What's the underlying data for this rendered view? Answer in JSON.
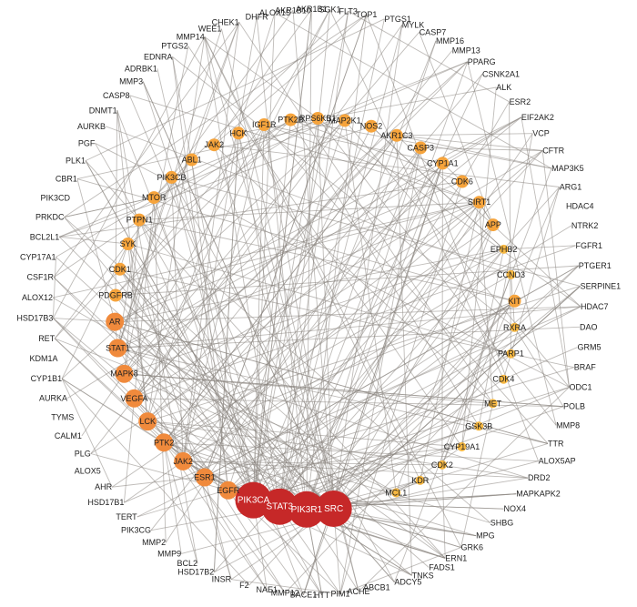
{
  "outer_nodes": [
    "SGK1",
    "FLT3",
    "TOP1",
    "PTGS1",
    "MYLK",
    "CASP7",
    "MMP16",
    "MMP13",
    "PPARG",
    "CSNK2A1",
    "ALK",
    "ESR2",
    "EIF2AK2",
    "VCP",
    "CFTR",
    "MAP3K5",
    "ARG1",
    "HDAC4",
    "NTRK2",
    "FGFR1",
    "PTGER1",
    "SERPINE1",
    "HDAC7",
    "DAO",
    "GRM5",
    "BRAF",
    "ODC1",
    "POLB",
    "MMP8",
    "TTR",
    "ALOX5AP",
    "DRD2",
    "MAPKAPK2",
    "NOX4",
    "SHBG",
    "MPG",
    "GRK6",
    "ERN1",
    "FADS1",
    "TNKS",
    "ADCY5",
    "ABCB1",
    "ACHE",
    "PIM1",
    "HTT",
    "BACE1",
    "MMP12",
    "NAE1",
    "F2",
    "INSR",
    "HSD17B2",
    "BCL2",
    "MMP9",
    "MMP2",
    "PIK3CG",
    "TERT",
    "HSD17B1",
    "AHR",
    "ALOX5",
    "PLG",
    "CALM1",
    "TYMS",
    "AURKA",
    "CYP1B1",
    "KDM1A",
    "RET",
    "HSD17B3",
    "ALOX12",
    "CSF1R",
    "CYP17A1",
    "BCL2L1",
    "PRKDC",
    "PIK3CD",
    "CBR1",
    "PLK1",
    "PGF",
    "AURKB",
    "DNMT1",
    "CASP8",
    "MMP3",
    "ADRBK1",
    "EDNRA",
    "PTGS2",
    "MMP14",
    "WEE1",
    "CHEK1",
    "DHFR",
    "ALOX15",
    "AKR1B10",
    "AKR1B1"
  ],
  "inner_nodes": [
    {
      "name": "SRC",
      "tier": 1
    },
    {
      "name": "PIK3R1",
      "tier": 1
    },
    {
      "name": "STAT3",
      "tier": 1
    },
    {
      "name": "PIK3CA",
      "tier": 1
    },
    {
      "name": "EGFR",
      "tier": 2
    },
    {
      "name": "ESR1",
      "tier": 2
    },
    {
      "name": "JAK2",
      "tier": 2
    },
    {
      "name": "PTK2",
      "tier": 2
    },
    {
      "name": "LCK",
      "tier": 2
    },
    {
      "name": "VEGFA",
      "tier": 2
    },
    {
      "name": "MAPK8",
      "tier": 2
    },
    {
      "name": "STAT1",
      "tier": 2
    },
    {
      "name": "AR",
      "tier": 2
    },
    {
      "name": "PDGFRB",
      "tier": 3
    },
    {
      "name": "CDK1",
      "tier": 3
    },
    {
      "name": "SYK",
      "tier": 3
    },
    {
      "name": "PTPN1",
      "tier": 3
    },
    {
      "name": "MTOR",
      "tier": 3
    },
    {
      "name": "PIK3CB",
      "tier": 3
    },
    {
      "name": "ABL1",
      "tier": 3
    },
    {
      "name": "JAK2",
      "tier": 3
    },
    {
      "name": "HCK",
      "tier": 3
    },
    {
      "name": "IGF1R",
      "tier": 3
    },
    {
      "name": "PTK2B",
      "tier": 3
    },
    {
      "name": "RPS6KB1",
      "tier": 3
    },
    {
      "name": "MAP2K1",
      "tier": 3
    },
    {
      "name": "NOS2",
      "tier": 3
    },
    {
      "name": "AKR1C3",
      "tier": 3
    },
    {
      "name": "CASP3",
      "tier": 3
    },
    {
      "name": "CYP1A1",
      "tier": 3
    },
    {
      "name": "CDK6",
      "tier": 3
    },
    {
      "name": "SIRT1",
      "tier": 3
    },
    {
      "name": "APP",
      "tier": 3
    },
    {
      "name": "EPHB2",
      "tier": 4
    },
    {
      "name": "CCND3",
      "tier": 4
    },
    {
      "name": "KIT",
      "tier": 3
    },
    {
      "name": "RXRA",
      "tier": 4
    },
    {
      "name": "PARP1",
      "tier": 4
    },
    {
      "name": "CDK4",
      "tier": 4
    },
    {
      "name": "MET",
      "tier": 4
    },
    {
      "name": "GSK3B",
      "tier": 4
    },
    {
      "name": "CYP19A1",
      "tier": 4
    },
    {
      "name": "CDK2",
      "tier": 4
    },
    {
      "name": "KDR",
      "tier": 4
    },
    {
      "name": "MCL1",
      "tier": 4
    }
  ],
  "colors": {
    "tier1": "#c62828",
    "tier2": "#f08a3c",
    "tier3": "#f6a43c",
    "tier4": "#f7b842",
    "edge": "#8a8580"
  }
}
